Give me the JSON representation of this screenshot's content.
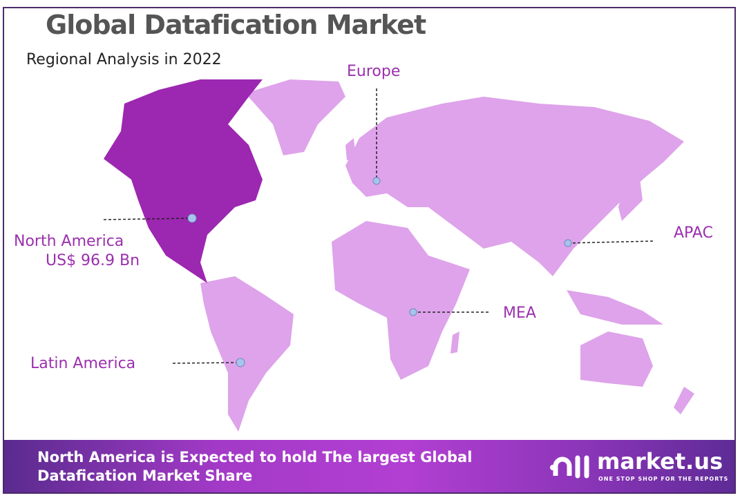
{
  "header": {
    "title": "Global Datafication Market",
    "subtitle": "Regional Analysis in 2022"
  },
  "regions": [
    {
      "name": "North America",
      "value": "US$ 96.9 Bn",
      "highlighted": true
    },
    {
      "name": "Europe"
    },
    {
      "name": "APAC"
    },
    {
      "name": "MEA"
    },
    {
      "name": "Latin America"
    }
  ],
  "colors": {
    "highlight": "#9c27b0",
    "land": "#dea3ea",
    "label": "#9b2fae",
    "marker": "#a8c4ec"
  },
  "footer": {
    "message_line1": "North America is Expected to hold The largest Global",
    "message_line2": "Datafication Market Share",
    "logo_name": "market.us",
    "logo_tagline": "ONE STOP SHOP FOR THE REPORTS"
  }
}
